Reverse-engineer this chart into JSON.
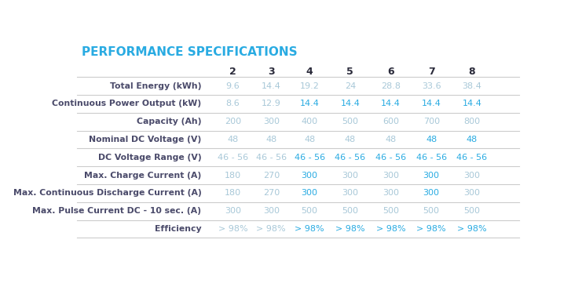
{
  "title": "PERFORMANCE SPECIFICATIONS",
  "title_color": "#29abe2",
  "col_headers": [
    "2",
    "3",
    "4",
    "5",
    "6",
    "7",
    "8"
  ],
  "row_labels": [
    "Total Energy (kWh)",
    "Continuous Power Output (kW)",
    "Capacity (Ah)",
    "Nominal DC Voltage (V)",
    "DC Voltage Range (V)",
    "Max. Charge Current (A)",
    "Max. Continuous Discharge Current (A)",
    "Max. Pulse Current DC - 10 sec. (A)",
    "Efficiency"
  ],
  "table_data": [
    [
      "9.6",
      "14.4",
      "19.2",
      "24",
      "28.8",
      "33.6",
      "38.4"
    ],
    [
      "8.6",
      "12.9",
      "14.4",
      "14.4",
      "14.4",
      "14.4",
      "14.4"
    ],
    [
      "200",
      "300",
      "400",
      "500",
      "600",
      "700",
      "800"
    ],
    [
      "48",
      "48",
      "48",
      "48",
      "48",
      "48",
      "48"
    ],
    [
      "46 - 56",
      "46 - 56",
      "46 - 56",
      "46 - 56",
      "46 - 56",
      "46 - 56",
      "46 - 56"
    ],
    [
      "180",
      "270",
      "300",
      "300",
      "300",
      "300",
      "300"
    ],
    [
      "180",
      "270",
      "300",
      "300",
      "300",
      "300",
      "300"
    ],
    [
      "300",
      "300",
      "500",
      "500",
      "500",
      "500",
      "500"
    ],
    [
      "> 98%",
      "> 98%",
      "> 98%",
      "> 98%",
      "> 98%",
      "> 98%",
      "> 98%"
    ]
  ],
  "highlighted_cells": [
    [
      false,
      false,
      false,
      false,
      false,
      false,
      false
    ],
    [
      false,
      false,
      true,
      true,
      true,
      true,
      true
    ],
    [
      false,
      false,
      false,
      false,
      false,
      false,
      false
    ],
    [
      false,
      false,
      false,
      false,
      false,
      true,
      true
    ],
    [
      false,
      false,
      true,
      true,
      true,
      true,
      true
    ],
    [
      false,
      false,
      true,
      false,
      false,
      true,
      false
    ],
    [
      false,
      false,
      true,
      false,
      false,
      true,
      false
    ],
    [
      false,
      false,
      false,
      false,
      false,
      false,
      false
    ],
    [
      false,
      false,
      true,
      true,
      true,
      true,
      true
    ]
  ],
  "normal_color": "#a8c8d8",
  "highlight_color": "#29abe2",
  "label_color": "#4a4a6a",
  "header_color": "#2a2a3a",
  "bg_color": "#ffffff",
  "divider_color": "#cccccc",
  "row_label_fontsize": 7.8,
  "data_fontsize": 8.0,
  "header_fontsize": 9.0,
  "title_fontsize": 11.0
}
